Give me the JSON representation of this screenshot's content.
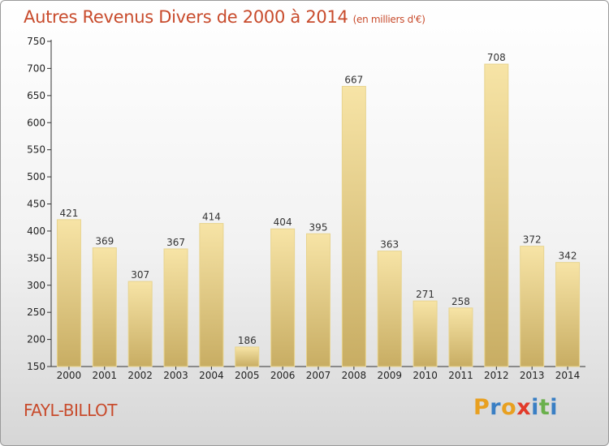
{
  "title": "Autres Revenus Divers de 2000 à 2014",
  "subtitle": "(en milliers d'€)",
  "commune": "FAYL-BILLOT",
  "logo": {
    "text": "Proxiti",
    "colors": [
      "#e8a020",
      "#3a7fc4",
      "#e8a020",
      "#e23a2a",
      "#3a7fc4",
      "#6ab04c",
      "#3a7fc4"
    ]
  },
  "colors": {
    "title": "#c84b2c",
    "bar_light": "#f7e4a6",
    "bar_dark": "#c8ad63",
    "bar_stroke": "#e8d48f"
  },
  "chart_data": {
    "type": "bar",
    "categories": [
      "2000",
      "2001",
      "2002",
      "2003",
      "2004",
      "2005",
      "2006",
      "2007",
      "2008",
      "2009",
      "2010",
      "2011",
      "2012",
      "2013",
      "2014"
    ],
    "values": [
      421,
      369,
      307,
      367,
      414,
      186,
      404,
      395,
      667,
      363,
      271,
      258,
      708,
      372,
      342
    ],
    "ylim": [
      150,
      750
    ],
    "yticks": [
      150,
      200,
      250,
      300,
      350,
      400,
      450,
      500,
      550,
      600,
      650,
      700,
      750
    ],
    "grid": false,
    "data_labels": true
  }
}
